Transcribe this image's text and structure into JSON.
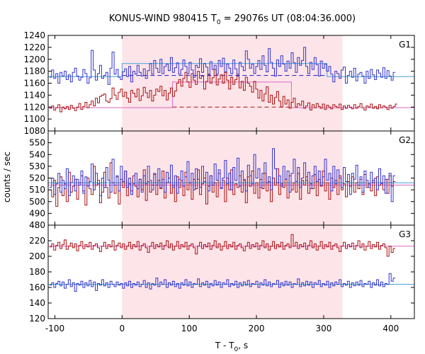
{
  "chart_data": {
    "type": "line",
    "title_main": "KONUS-WIND 980415 T",
    "title_sub": "0",
    "title_rest": " = 29076s UT (08:04:36.000)",
    "xlabel_main": "T - T",
    "xlabel_sub": "0",
    "xlabel_rest": ", s",
    "ylabel": "counts / sec",
    "xlim": [
      -110,
      435
    ],
    "x_ticks": [
      -100,
      0,
      100,
      200,
      300,
      400
    ],
    "highlight_interval": [
      0,
      328
    ],
    "colors": {
      "blue_series": "#3333cc",
      "red_series": "#aa1111",
      "cyan_fit": "#55aadd",
      "pink_fit": "#dd77cc",
      "highlight": "#fde4e8"
    },
    "panels": [
      {
        "label": "G1",
        "ylim": [
          1080,
          1240
        ],
        "y_ticks": [
          1080,
          1100,
          1120,
          1140,
          1160,
          1180,
          1200,
          1220,
          1240
        ],
        "blue": {
          "x0": -108,
          "step": 3.1,
          "values": [
            1170,
            1182,
            1168,
            1176,
            1160,
            1178,
            1172,
            1180,
            1166,
            1174,
            1162,
            1178,
            1185,
            1172,
            1165,
            1170,
            1183,
            1176,
            1160,
            1169,
            1215,
            1182,
            1165,
            1176,
            1190,
            1168,
            1173,
            1178,
            1158,
            1185,
            1212,
            1175,
            1183,
            1170,
            1166,
            1179,
            1184,
            1171,
            1188,
            1162,
            1180,
            1175,
            1190,
            1178,
            1172,
            1184,
            1168,
            1181,
            1193,
            1175,
            1198,
            1185,
            1178,
            1200,
            1176,
            1188,
            1192,
            1181,
            1203,
            1178,
            1186,
            1194,
            1175,
            1183,
            1199,
            1188,
            1176,
            1195,
            1182,
            1170,
            1190,
            1186,
            1201,
            1178,
            1193,
            1187,
            1174,
            1196,
            1183,
            1190,
            1175,
            1198,
            1188,
            1202,
            1179,
            1192,
            1185,
            1176,
            1199,
            1184,
            1172,
            1195,
            1188,
            1181,
            1214,
            1200,
            1185,
            1192,
            1176,
            1188,
            1198,
            1183,
            1206,
            1190,
            1179,
            1218,
            1195,
            1185,
            1172,
            1199,
            1188,
            1206,
            1192,
            1180,
            1197,
            1185,
            1211,
            1194,
            1178,
            1203,
            1190,
            1198,
            1220,
            1188,
            1176,
            1195,
            1183,
            1203,
            1191,
            1172,
            1197,
            1185,
            1192,
            1180,
            1188,
            1175,
            1162,
            1180,
            1176,
            1168,
            1182,
            1187,
            1160,
            1173,
            1180,
            1170,
            1185,
            1164,
            1175,
            1178,
            1172,
            1160,
            1180,
            1168,
            1183,
            1174,
            1166,
            1182,
            1177,
            1170,
            1186,
            1168,
            1181,
            1172,
            1165,
            1178
          ],
          "fit_level": 1171,
          "fit_level_burst": 1193,
          "dashed_level": 1173
        },
        "red": {
          "x0": -108,
          "step": 3.1,
          "values": [
            1118,
            1122,
            1115,
            1119,
            1124,
            1112,
            1120,
            1117,
            1121,
            1116,
            1123,
            1118,
            1114,
            1120,
            1126,
            1116,
            1121,
            1128,
            1119,
            1124,
            1130,
            1122,
            1135,
            1127,
            1138,
            1140,
            1142,
            1130,
            1128,
            1134,
            1152,
            1140,
            1133,
            1145,
            1150,
            1138,
            1145,
            1135,
            1128,
            1148,
            1143,
            1137,
            1150,
            1131,
            1139,
            1153,
            1144,
            1136,
            1148,
            1130,
            1140,
            1150,
            1146,
            1155,
            1139,
            1148,
            1132,
            1143,
            1152,
            1138,
            1147,
            1160,
            1166,
            1155,
            1168,
            1178,
            1162,
            1153,
            1176,
            1165,
            1158,
            1180,
            1168,
            1172,
            1150,
            1163,
            1175,
            1160,
            1169,
            1183,
            1157,
            1167,
            1174,
            1160,
            1178,
            1165,
            1150,
            1170,
            1158,
            1166,
            1175,
            1152,
            1163,
            1148,
            1170,
            1160,
            1155,
            1145,
            1163,
            1150,
            1135,
            1148,
            1130,
            1142,
            1154,
            1128,
            1140,
            1125,
            1136,
            1146,
            1130,
            1120,
            1138,
            1125,
            1132,
            1118,
            1128,
            1135,
            1120,
            1126,
            1123,
            1130,
            1118,
            1122,
            1127,
            1115,
            1124,
            1119,
            1126,
            1121,
            1118,
            1125,
            1116,
            1123,
            1120,
            1117,
            1124,
            1121,
            1119,
            1125,
            1116,
            1122,
            1118,
            1123,
            1120,
            1117,
            1124,
            1118,
            1121,
            1126,
            1119,
            1115,
            1122,
            1120,
            1125,
            1118,
            1121,
            1117,
            1124,
            1119,
            1122,
            1120,
            1116,
            1123,
            1118,
            1121,
            1125
          ],
          "fit_level": 1119,
          "fit_level_burst": 1162,
          "dashed_level": 1120
        }
      },
      {
        "label": "G2",
        "ylim": [
          480,
          560
        ],
        "y_ticks": [
          480,
          490,
          500,
          510,
          520,
          530,
          540,
          550
        ],
        "blue": {
          "x0": -108,
          "step": 3.1,
          "values": [
            512,
            520,
            506,
            515,
            524,
            508,
            518,
            511,
            528,
            505,
            516,
            522,
            509,
            519,
            514,
            526,
            507,
            521,
            513,
            517,
            532,
            510,
            524,
            515,
            505,
            520,
            512,
            529,
            518,
            508,
            536,
            514,
            522,
            509,
            530,
            517,
            526,
            512,
            520,
            506,
            515,
            524,
            511,
            519,
            508,
            522,
            515,
            530,
            518,
            510,
            524,
            514,
            528,
            512,
            519,
            508,
            525,
            516,
            531,
            512,
            522,
            507,
            519,
            526,
            513,
            521,
            534,
            516,
            524,
            510,
            528,
            519,
            512,
            530,
            517,
            525,
            509,
            522,
            514,
            532,
            518,
            527,
            511,
            520,
            535,
            515,
            524,
            510,
            529,
            518,
            537,
            513,
            526,
            519,
            509,
            531,
            522,
            515,
            540,
            520,
            528,
            512,
            524,
            533,
            516,
            521,
            510,
            545,
            528,
            516,
            522,
            513,
            530,
            519,
            526,
            508,
            524,
            536,
            517,
            529,
            512,
            520,
            533,
            518,
            525,
            511,
            522,
            530,
            517,
            526,
            514,
            521,
            536,
            518,
            524,
            509,
            530,
            515,
            527,
            520,
            512,
            529,
            517,
            523,
            506,
            524,
            519,
            531,
            514,
            521,
            508,
            526,
            518,
            512,
            525,
            516,
            520,
            510,
            528,
            515,
            522,
            507,
            519,
            524,
            500,
            522
          ],
          "fit_level": 516
        },
        "red": {
          "x0": -108,
          "step": 3.1,
          "values": [
            510,
            504,
            518,
            496,
            512,
            521,
            505,
            515,
            500,
            525,
            508,
            513,
            519,
            502,
            516,
            522,
            509,
            497,
            520,
            511,
            506,
            530,
            514,
            518,
            499,
            508,
            525,
            512,
            503,
            533,
            516,
            507,
            521,
            498,
            519,
            512,
            526,
            505,
            515,
            509,
            522,
            513,
            504,
            519,
            510,
            527,
            501,
            517,
            508,
            514,
            523,
            506,
            518,
            511,
            526,
            503,
            516,
            520,
            507,
            514,
            500,
            521,
            512,
            518,
            505,
            525,
            510,
            516,
            502,
            519,
            511,
            527,
            506,
            515,
            520,
            498,
            513,
            522,
            508,
            516,
            504,
            524,
            512,
            518,
            500,
            520,
            510,
            527,
            506,
            515,
            512,
            522,
            508,
            518,
            499,
            521,
            513,
            526,
            507,
            516,
            503,
            519,
            511,
            524,
            509,
            517,
            500,
            520,
            514,
            528,
            506,
            515,
            512,
            519,
            503,
            522,
            510,
            516,
            508,
            524,
            502,
            518,
            514,
            521,
            507,
            515,
            511,
            523,
            505,
            519,
            513,
            526,
            509,
            516,
            502,
            520,
            512,
            518,
            506,
            522,
            510,
            515,
            504,
            517,
            513,
            521,
            508,
            516,
            511,
            519,
            506,
            523,
            512,
            515,
            509,
            518,
            505,
            521,
            514,
            516,
            510,
            519,
            507,
            522,
            513,
            517
          ],
          "fit_level": 514
        }
      },
      {
        "label": "G3",
        "ylim": [
          120,
          240
        ],
        "y_ticks": [
          120,
          140,
          160,
          180,
          200,
          220
        ],
        "blue": {
          "x0": -108,
          "step": 3.1,
          "values": [
            163,
            166,
            160,
            165,
            168,
            162,
            167,
            159,
            164,
            170,
            161,
            166,
            155,
            165,
            163,
            168,
            160,
            166,
            162,
            169,
            161,
            167,
            156,
            165,
            163,
            170,
            162,
            166,
            160,
            168,
            164,
            161,
            167,
            163,
            165,
            159,
            166,
            162,
            168,
            160,
            165,
            163,
            167,
            161,
            164,
            169,
            160,
            166,
            158,
            165,
            163,
            172,
            161,
            167,
            164,
            170,
            160,
            166,
            163,
            168,
            161,
            165,
            159,
            166,
            163,
            170,
            162,
            167,
            160,
            165,
            164,
            171,
            161,
            166,
            163,
            168,
            160,
            165,
            162,
            169,
            163,
            167,
            160,
            166,
            164,
            170,
            161,
            165,
            163,
            168,
            160,
            166,
            162,
            167,
            163,
            169,
            161,
            165,
            164,
            168,
            160,
            166,
            163,
            170,
            162,
            167,
            161,
            165,
            164,
            169,
            160,
            166,
            162,
            168,
            163,
            167,
            160,
            165,
            164,
            171,
            161,
            166,
            162,
            168,
            163,
            167,
            160,
            166,
            164,
            169,
            161,
            165,
            163,
            168,
            160,
            166,
            162,
            167,
            164,
            170,
            161,
            165,
            163,
            168,
            160,
            166,
            162,
            167,
            163,
            169,
            161,
            165,
            164,
            168,
            160,
            166,
            163,
            170,
            162,
            167,
            161,
            165,
            164,
            178,
            168,
            172
          ],
          "fit_level": 164
        },
        "red": {
          "x0": -108,
          "step": 3.1,
          "values": [
            212,
            216,
            208,
            214,
            218,
            210,
            215,
            221,
            209,
            213,
            217,
            211,
            216,
            207,
            214,
            219,
            210,
            215,
            212,
            218,
            209,
            214,
            216,
            211,
            206,
            213,
            218,
            210,
            215,
            212,
            220,
            208,
            214,
            217,
            211,
            216,
            209,
            213,
            218,
            210,
            215,
            212,
            219,
            208,
            214,
            216,
            211,
            205,
            213,
            218,
            210,
            215,
            212,
            217,
            209,
            214,
            220,
            211,
            216,
            208,
            213,
            219,
            210,
            215,
            212,
            218,
            209,
            214,
            216,
            211,
            203,
            213,
            218,
            210,
            215,
            212,
            217,
            209,
            214,
            220,
            211,
            216,
            208,
            213,
            219,
            210,
            215,
            212,
            218,
            209,
            214,
            216,
            211,
            207,
            213,
            218,
            210,
            215,
            212,
            217,
            209,
            214,
            220,
            211,
            216,
            208,
            213,
            219,
            210,
            215,
            212,
            218,
            209,
            214,
            216,
            211,
            228,
            213,
            218,
            210,
            215,
            212,
            217,
            209,
            214,
            220,
            211,
            216,
            208,
            213,
            219,
            210,
            215,
            212,
            218,
            209,
            214,
            216,
            211,
            206,
            213,
            218,
            210,
            215,
            212,
            217,
            209,
            214,
            220,
            211,
            216,
            208,
            213,
            219,
            210,
            215,
            212,
            218,
            209,
            214,
            216,
            211,
            200,
            213,
            205,
            210
          ],
          "fit_level": 213
        }
      }
    ]
  }
}
